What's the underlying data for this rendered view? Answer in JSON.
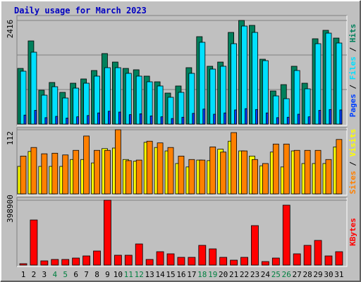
{
  "title": "Daily usage for March 2023",
  "legend_separator": " / ",
  "weekend_label_color": "#008040",
  "weekend_days": [
    4,
    5,
    11,
    12,
    18,
    19,
    25,
    26
  ],
  "chart_data": [
    {
      "type": "bar",
      "ylim": [
        0,
        2416
      ],
      "yticks": [
        2416
      ],
      "series": [
        {
          "name": "Pages",
          "color": "#0040ff",
          "values": [
            210,
            320,
            150,
            180,
            140,
            170,
            200,
            260,
            300,
            280,
            220,
            240,
            190,
            170,
            130,
            160,
            250,
            350,
            230,
            260,
            330,
            360,
            340,
            260,
            150,
            160,
            230,
            170,
            320,
            340,
            330
          ]
        },
        {
          "name": "Files",
          "color": "#00e0ff",
          "values": [
            1233,
            1676,
            674,
            871,
            608,
            838,
            953,
            1118,
            1315,
            1315,
            1183,
            1118,
            986,
            888,
            625,
            740,
            1183,
            1907,
            1282,
            1348,
            1874,
            2285,
            2137,
            1479,
            657,
            592,
            1249,
            822,
            1874,
            2120,
            1890
          ]
        },
        {
          "name": "Hits",
          "color": "#00805c",
          "values": [
            1298,
            1939,
            789,
            970,
            740,
            953,
            1052,
            1249,
            1644,
            1446,
            1298,
            1266,
            1118,
            986,
            723,
            888,
            1315,
            2038,
            1348,
            1446,
            2137,
            2416,
            2301,
            1512,
            772,
            920,
            1348,
            953,
            1989,
            2186,
            2005
          ]
        }
      ]
    },
    {
      "type": "bar",
      "ylim": [
        0,
        112
      ],
      "yticks": [
        112
      ],
      "series": [
        {
          "name": "Sites",
          "color": "#ff8000",
          "values": [
            66,
            81,
            70,
            71,
            68,
            76,
            101,
            76,
            76,
            112,
            58,
            59,
            92,
            89,
            81,
            66,
            60,
            59,
            82,
            73,
            107,
            75,
            60,
            53,
            87,
            87,
            76,
            76,
            76,
            60,
            95
          ]
        },
        {
          "name": "Visits",
          "color": "#ffff00",
          "values": [
            48,
            74,
            48,
            48,
            48,
            60,
            60,
            54,
            79,
            80,
            60,
            57,
            90,
            81,
            75,
            53,
            47,
            59,
            58,
            78,
            92,
            75,
            66,
            49,
            73,
            47,
            75,
            53,
            53,
            53,
            82
          ]
        }
      ]
    },
    {
      "type": "bar",
      "ylim": [
        0,
        398900
      ],
      "yticks": [
        398900
      ],
      "categories": [
        "1",
        "2",
        "3",
        "4",
        "5",
        "6",
        "7",
        "8",
        "9",
        "10",
        "11",
        "12",
        "13",
        "14",
        "15",
        "16",
        "17",
        "18",
        "19",
        "20",
        "21",
        "22",
        "23",
        "24",
        "25",
        "26",
        "27",
        "28",
        "29",
        "30",
        "31"
      ],
      "series": [
        {
          "name": "KBytes",
          "color": "#ff0000",
          "values": [
            8672,
            277496,
            26000,
            34687,
            34687,
            43359,
            56367,
            86717,
            398900,
            60702,
            60702,
            130076,
            34687,
            82381,
            69374,
            47694,
            47694,
            121404,
            99727,
            47694,
            30351,
            47694,
            242808,
            21679,
            43359,
            368550,
            69374,
            121404,
            151755,
            56367,
            82381
          ]
        }
      ]
    }
  ]
}
